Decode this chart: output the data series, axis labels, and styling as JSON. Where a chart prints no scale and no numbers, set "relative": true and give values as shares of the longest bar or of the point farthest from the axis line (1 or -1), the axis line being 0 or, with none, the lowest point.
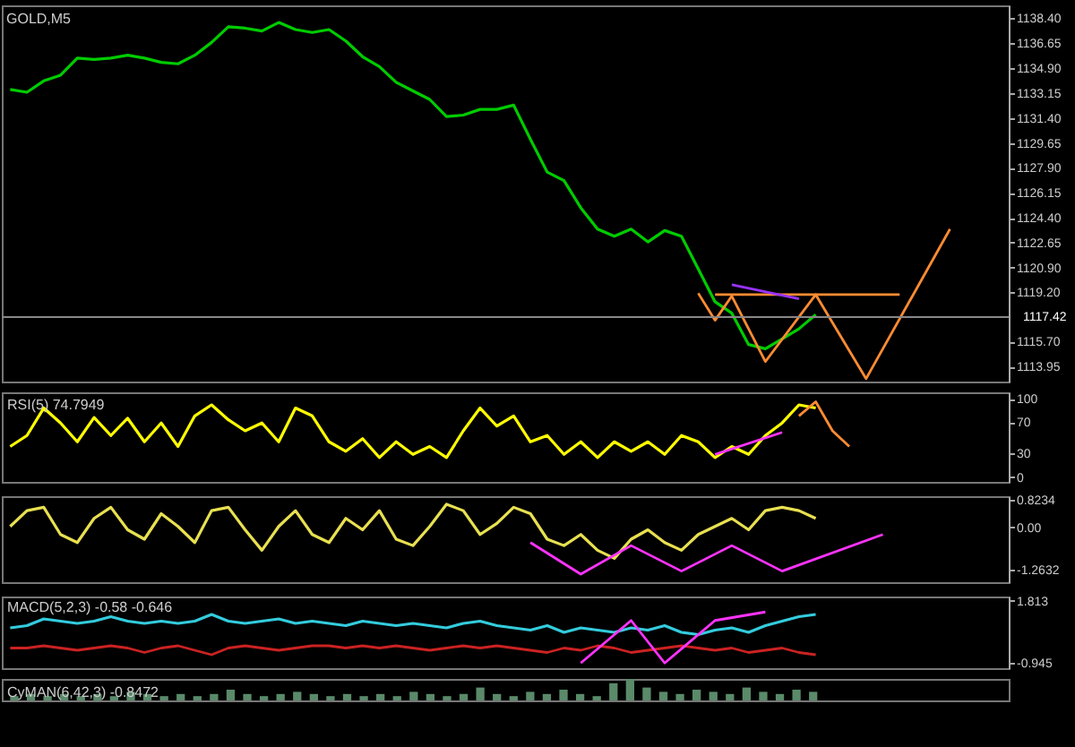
{
  "chart_data": [
    {
      "type": "line",
      "title": "GOLD,M5",
      "categories": [
        null,
        null,
        null,
        null,
        null,
        null,
        null,
        null,
        null,
        null,
        null,
        null,
        null,
        null,
        null,
        null,
        null,
        null,
        null,
        null,
        null,
        null,
        null,
        null,
        null,
        null,
        null,
        null,
        null,
        null,
        null,
        null,
        null,
        null,
        null,
        null,
        null,
        null,
        null,
        null,
        null,
        null,
        null,
        null,
        null,
        null,
        null,
        null,
        null,
        null,
        null,
        null,
        null,
        null,
        null,
        null,
        null,
        null,
        null,
        null
      ],
      "series": [
        {
          "color": "#00cc00",
          "values": [
            1133.4,
            1133.2,
            1134.0,
            1134.4,
            1135.6,
            1135.5,
            1135.6,
            1135.8,
            1135.6,
            1135.3,
            1135.2,
            1135.8,
            1136.7,
            1137.8,
            1137.7,
            1137.5,
            1138.1,
            1137.6,
            1137.4,
            1137.6,
            1136.8,
            1135.7,
            1135.0,
            1133.9,
            1133.3,
            1132.7,
            1131.5,
            1131.6,
            1132.0,
            1132.0,
            1132.3,
            1129.9,
            1127.6,
            1127.0,
            1125.1,
            1123.6,
            1123.1,
            1123.6,
            1122.7,
            1123.5,
            1123.1,
            1120.8,
            1118.5,
            1117.7,
            1115.5,
            1115.2,
            1115.9,
            1116.6,
            1117.6,
            null,
            null,
            null,
            null,
            null,
            null,
            null,
            null,
            null,
            null,
            null
          ]
        },
        {
          "type": "line",
          "color": "#ff8c32",
          "values": [
            null,
            null,
            null,
            null,
            null,
            null,
            null,
            null,
            null,
            null,
            null,
            null,
            null,
            null,
            null,
            null,
            null,
            null,
            null,
            null,
            null,
            null,
            null,
            null,
            null,
            null,
            null,
            null,
            null,
            null,
            null,
            null,
            null,
            null,
            null,
            null,
            null,
            null,
            null,
            null,
            null,
            1119.1,
            1117.2,
            1118.9,
            null,
            1114.3,
            null,
            null,
            1119.0,
            null,
            null,
            1113.1,
            null,
            null,
            null,
            null,
            1123.6,
            null,
            null,
            null
          ]
        },
        {
          "type": "line",
          "color": "#ff8c32",
          "values": [
            null,
            null,
            null,
            null,
            null,
            null,
            null,
            null,
            null,
            null,
            null,
            null,
            null,
            null,
            null,
            null,
            null,
            null,
            null,
            null,
            null,
            null,
            null,
            null,
            null,
            null,
            null,
            null,
            null,
            null,
            null,
            null,
            null,
            null,
            null,
            null,
            null,
            null,
            null,
            null,
            null,
            null,
            1119.0,
            null,
            null,
            null,
            null,
            null,
            null,
            null,
            null,
            null,
            null,
            1119.0,
            null,
            null,
            null,
            null,
            null,
            null
          ]
        },
        {
          "type": "line",
          "color": "#9933ff",
          "values": [
            null,
            null,
            null,
            null,
            null,
            null,
            null,
            null,
            null,
            null,
            null,
            null,
            null,
            null,
            null,
            null,
            null,
            null,
            null,
            null,
            null,
            null,
            null,
            null,
            null,
            null,
            null,
            null,
            null,
            null,
            null,
            null,
            null,
            null,
            null,
            null,
            null,
            null,
            null,
            null,
            null,
            null,
            null,
            1119.7,
            null,
            null,
            null,
            1118.7,
            null,
            null,
            null,
            null,
            null,
            null,
            null,
            null,
            null,
            null,
            null,
            null
          ]
        }
      ],
      "ylim": [
        1112.9,
        1139.3
      ],
      "yticks": [
        {
          "value": 1138.4,
          "label": "1138.40"
        },
        {
          "value": 1136.65,
          "label": "1136.65"
        },
        {
          "value": 1134.9,
          "label": "1134.90"
        },
        {
          "value": 1133.15,
          "label": "1133.15"
        },
        {
          "value": 1131.4,
          "label": "1131.40"
        },
        {
          "value": 1129.65,
          "label": "1129.65"
        },
        {
          "value": 1127.9,
          "label": "1127.90"
        },
        {
          "value": 1126.15,
          "label": "1126.15"
        },
        {
          "value": 1124.4,
          "label": "1124.40"
        },
        {
          "value": 1122.65,
          "label": "1122.65"
        },
        {
          "value": 1120.9,
          "label": "1120.90"
        },
        {
          "value": 1119.2,
          "label": "1119.20"
        },
        {
          "value": 1115.7,
          "label": "1115.70"
        },
        {
          "value": 1113.95,
          "label": "1113.95"
        }
      ],
      "ref_lines": [
        {
          "axis": "y",
          "value": 1117.42,
          "label": "1117.42",
          "color": "#888888"
        }
      ],
      "tick_labels": "y"
    },
    {
      "type": "line",
      "title": "RSI(5) 74.7949",
      "categories": [
        null,
        null,
        null,
        null,
        null,
        null,
        null,
        null,
        null,
        null,
        null,
        null,
        null,
        null,
        null,
        null,
        null,
        null,
        null,
        null,
        null,
        null,
        null,
        null,
        null,
        null,
        null,
        null,
        null,
        null,
        null,
        null,
        null,
        null,
        null,
        null,
        null,
        null,
        null,
        null,
        null,
        null,
        null,
        null,
        null,
        null,
        null,
        null,
        null,
        null,
        null,
        null,
        null,
        null,
        null,
        null,
        null,
        null,
        null,
        null
      ],
      "series": [
        {
          "color": "#ffff00",
          "values": [
            39,
            53,
            88,
            69,
            45,
            76,
            53,
            75,
            45,
            69,
            39,
            78,
            92,
            73,
            59,
            69,
            45,
            88,
            78,
            45,
            33,
            49,
            25,
            45,
            29,
            39,
            25,
            59,
            88,
            65,
            78,
            45,
            53,
            29,
            45,
            25,
            45,
            33,
            45,
            29,
            53,
            45,
            25,
            39,
            29,
            53,
            69,
            92,
            88,
            null,
            null,
            null,
            null,
            null,
            null,
            null,
            null,
            null,
            null,
            null
          ]
        },
        {
          "color": "#ff33ff",
          "values": [
            null,
            null,
            null,
            null,
            null,
            null,
            null,
            null,
            null,
            null,
            null,
            null,
            null,
            null,
            null,
            null,
            null,
            null,
            null,
            null,
            null,
            null,
            null,
            null,
            null,
            null,
            null,
            null,
            null,
            null,
            null,
            null,
            null,
            null,
            null,
            null,
            null,
            null,
            null,
            null,
            null,
            null,
            29,
            null,
            null,
            null,
            57,
            null,
            null,
            null,
            null,
            null,
            null,
            null,
            null,
            null,
            null,
            null,
            null,
            null
          ]
        },
        {
          "color": "#ff8c32",
          "values": [
            null,
            null,
            null,
            null,
            null,
            null,
            null,
            null,
            null,
            null,
            null,
            null,
            null,
            null,
            null,
            null,
            null,
            null,
            null,
            null,
            null,
            null,
            null,
            null,
            null,
            null,
            null,
            null,
            null,
            null,
            null,
            null,
            null,
            null,
            null,
            null,
            null,
            null,
            null,
            null,
            null,
            null,
            null,
            null,
            null,
            null,
            null,
            78,
            96,
            59,
            39,
            null,
            null,
            null,
            null,
            null,
            null,
            null,
            null,
            null
          ]
        }
      ],
      "ylim": [
        -6,
        108
      ],
      "yticks": [
        100,
        70,
        30,
        0
      ],
      "tick_labels": "y"
    },
    {
      "type": "line",
      "categories": [
        null,
        null,
        null,
        null,
        null,
        null,
        null,
        null,
        null,
        null,
        null,
        null,
        null,
        null,
        null,
        null,
        null,
        null,
        null,
        null,
        null,
        null,
        null,
        null,
        null,
        null,
        null,
        null,
        null,
        null,
        null,
        null,
        null,
        null,
        null,
        null,
        null,
        null,
        null,
        null,
        null,
        null,
        null,
        null,
        null,
        null,
        null,
        null,
        null,
        null,
        null,
        null,
        null,
        null,
        null,
        null,
        null,
        null,
        null,
        null
      ],
      "series": [
        {
          "color": "#e8e050",
          "values": [
            0.02,
            0.49,
            0.59,
            -0.22,
            -0.46,
            0.26,
            0.59,
            -0.08,
            -0.36,
            0.4,
            0.02,
            -0.46,
            0.49,
            0.59,
            -0.08,
            -0.69,
            0.02,
            0.49,
            -0.22,
            -0.46,
            0.26,
            -0.08,
            0.49,
            -0.36,
            -0.55,
            0.02,
            0.68,
            0.49,
            -0.22,
            0.11,
            0.59,
            0.4,
            -0.36,
            -0.55,
            -0.22,
            -0.69,
            -0.93,
            -0.36,
            -0.08,
            -0.46,
            -0.69,
            -0.22,
            0.02,
            0.26,
            -0.08,
            0.49,
            0.59,
            0.49,
            0.26,
            null,
            null,
            null,
            null,
            null,
            null,
            null,
            null,
            null,
            null,
            null
          ]
        },
        {
          "color": "#ff33ff",
          "values": [
            null,
            null,
            null,
            null,
            null,
            null,
            null,
            null,
            null,
            null,
            null,
            null,
            null,
            null,
            null,
            null,
            null,
            null,
            null,
            null,
            null,
            null,
            null,
            null,
            null,
            null,
            null,
            null,
            null,
            null,
            null,
            -0.46,
            null,
            null,
            -1.4,
            null,
            null,
            -0.55,
            null,
            null,
            -1.31,
            null,
            null,
            -0.55,
            null,
            null,
            -1.31,
            null,
            null,
            null,
            null,
            null,
            -0.22,
            null,
            null,
            null,
            null,
            null,
            null,
            null
          ]
        }
      ],
      "ylim": [
        -1.64,
        0.92
      ],
      "yticks": [
        {
          "value": 0.8234,
          "label": "0.8234"
        },
        {
          "value": 0,
          "label": "0.00"
        },
        {
          "value": -1.2632,
          "label": "-1.2632"
        }
      ],
      "tick_labels": "y"
    },
    {
      "type": "line",
      "title": "MACD(5,2,3) -0.58 -0.646",
      "categories": [
        null,
        null,
        null,
        null,
        null,
        null,
        null,
        null,
        null,
        null,
        null,
        null,
        null,
        null,
        null,
        null,
        null,
        null,
        null,
        null,
        null,
        null,
        null,
        null,
        null,
        null,
        null,
        null,
        null,
        null,
        null,
        null,
        null,
        null,
        null,
        null,
        null,
        null,
        null,
        null,
        null,
        null,
        null,
        null,
        null,
        null,
        null,
        null,
        null,
        null,
        null,
        null,
        null,
        null,
        null,
        null,
        null,
        null,
        null,
        null
      ],
      "series": [
        {
          "color": "#33ccdd",
          "values": [
            0.6,
            0.7,
            1.0,
            0.9,
            0.8,
            0.9,
            1.1,
            0.9,
            0.8,
            0.9,
            0.8,
            0.9,
            1.2,
            0.9,
            0.8,
            0.9,
            1.0,
            0.8,
            0.9,
            0.8,
            0.7,
            0.9,
            0.8,
            0.7,
            0.8,
            0.7,
            0.6,
            0.8,
            0.9,
            0.7,
            0.6,
            0.5,
            0.7,
            0.4,
            0.6,
            0.5,
            0.4,
            0.6,
            0.5,
            0.7,
            0.4,
            0.3,
            0.5,
            0.6,
            0.4,
            0.7,
            0.9,
            1.1,
            1.2,
            null,
            null,
            null,
            null,
            null,
            null,
            null,
            null,
            null,
            null,
            null
          ]
        },
        {
          "color": "#cc2222",
          "values": [
            -0.3,
            -0.3,
            -0.2,
            -0.3,
            -0.4,
            -0.3,
            -0.2,
            -0.3,
            -0.5,
            -0.3,
            -0.2,
            -0.4,
            -0.6,
            -0.3,
            -0.2,
            -0.3,
            -0.4,
            -0.3,
            -0.2,
            -0.2,
            -0.3,
            -0.2,
            -0.3,
            -0.2,
            -0.3,
            -0.4,
            -0.3,
            -0.2,
            -0.3,
            -0.2,
            -0.3,
            -0.4,
            -0.5,
            -0.3,
            -0.4,
            -0.2,
            -0.3,
            -0.5,
            -0.4,
            -0.3,
            -0.2,
            -0.3,
            -0.4,
            -0.3,
            -0.5,
            -0.4,
            -0.3,
            -0.5,
            -0.6,
            null,
            null,
            null,
            null,
            null,
            null,
            null,
            null,
            null,
            null,
            null
          ]
        },
        {
          "color": "#ff33ff",
          "values": [
            null,
            null,
            null,
            null,
            null,
            null,
            null,
            null,
            null,
            null,
            null,
            null,
            null,
            null,
            null,
            null,
            null,
            null,
            null,
            null,
            null,
            null,
            null,
            null,
            null,
            null,
            null,
            null,
            null,
            null,
            null,
            null,
            null,
            null,
            -0.97,
            null,
            null,
            0.93,
            null,
            -0.97,
            null,
            null,
            0.93,
            null,
            null,
            1.31,
            null,
            null,
            null,
            null,
            null,
            null,
            null,
            null,
            null,
            null,
            null,
            null,
            null,
            null
          ]
        }
      ],
      "ylim": [
        -1.2,
        2.0
      ],
      "yticks": [
        {
          "value": 1.813,
          "label": "1.813"
        },
        {
          "value": -0.945,
          "label": "-0.945"
        }
      ],
      "tick_labels": "y"
    },
    {
      "type": "bar",
      "title": "CyMAN(6,42,3) -0.8472",
      "relative": true,
      "tick_labels": false,
      "categories": [
        null,
        null,
        null,
        null,
        null,
        null,
        null,
        null,
        null,
        null,
        null,
        null,
        null,
        null,
        null,
        null,
        null,
        null,
        null,
        null,
        null,
        null,
        null,
        null,
        null,
        null,
        null,
        null,
        null,
        null,
        null,
        null,
        null,
        null,
        null,
        null,
        null,
        null,
        null,
        null,
        null,
        null,
        null,
        null,
        null,
        null,
        null,
        null,
        null,
        null,
        null,
        null,
        null,
        null,
        null,
        null,
        null,
        null,
        null,
        null
      ],
      "series": [
        {
          "color": "#5a8a6a",
          "values": [
            0.2,
            0.3,
            0.2,
            0.3,
            0.2,
            0.3,
            0.2,
            0.4,
            0.3,
            0.2,
            0.3,
            0.2,
            0.3,
            0.5,
            0.3,
            0.2,
            0.3,
            0.4,
            0.3,
            0.2,
            0.3,
            0.2,
            0.3,
            0.2,
            0.4,
            0.3,
            0.2,
            0.3,
            0.6,
            0.3,
            0.2,
            0.4,
            0.3,
            0.5,
            0.3,
            0.2,
            0.8,
            1.0,
            0.6,
            0.4,
            0.3,
            0.5,
            0.4,
            0.3,
            0.6,
            0.4,
            0.3,
            0.5,
            0.4,
            null,
            null,
            null,
            null,
            null,
            null,
            null,
            null,
            null,
            null,
            null
          ]
        }
      ]
    }
  ]
}
